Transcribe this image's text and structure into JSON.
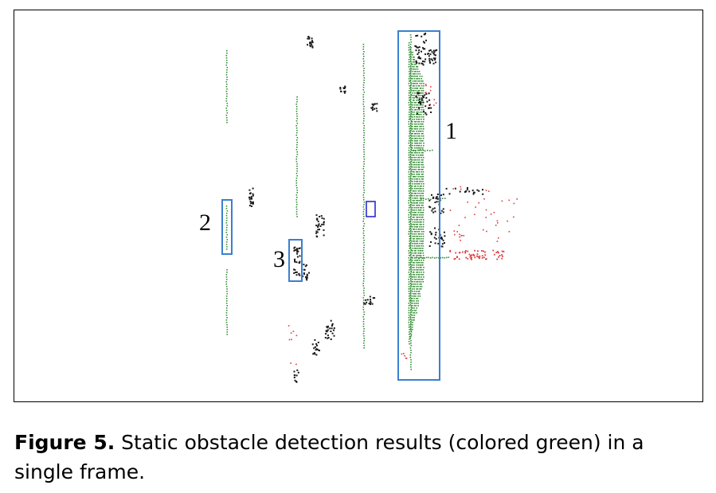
{
  "figure": {
    "region_labels": [
      "1",
      "2",
      "3"
    ],
    "caption_label": "Figure 5.",
    "caption_text": " Static obstacle detection results (colored green) in a single frame."
  },
  "colors": {
    "static_obstacle": "#3a8f3a",
    "dynamic_points": "#e0393e",
    "other_points": "#1a1a1a",
    "box_outline": "#3b7fd0",
    "small_box_outline": "#2b2bd6"
  }
}
